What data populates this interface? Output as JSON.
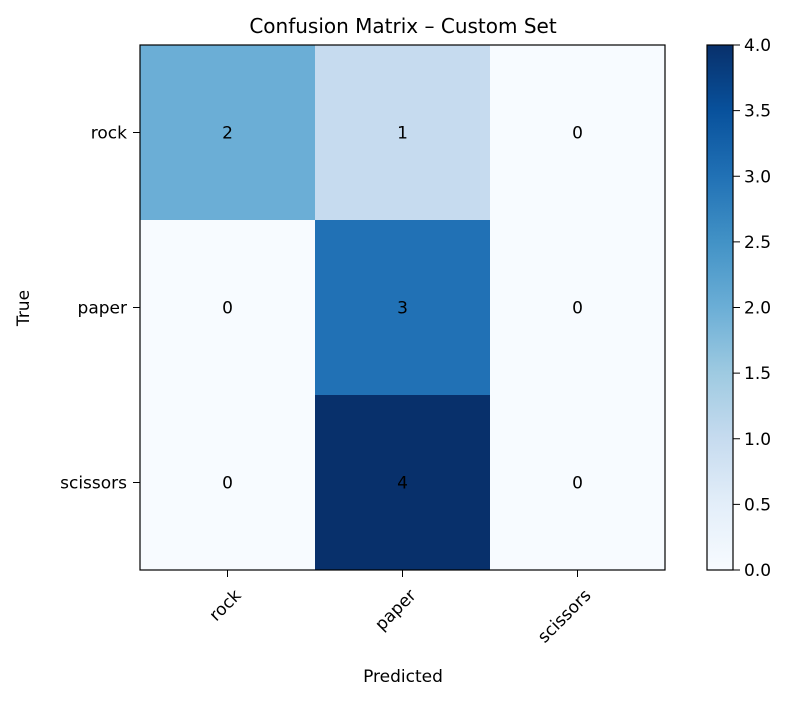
{
  "chart_data": {
    "type": "heatmap",
    "title": "Confusion Matrix – Custom Set",
    "xlabel": "Predicted",
    "ylabel": "True",
    "x_categories": [
      "rock",
      "paper",
      "scissors"
    ],
    "y_categories": [
      "rock",
      "paper",
      "scissors"
    ],
    "values": [
      [
        2,
        1,
        0
      ],
      [
        0,
        3,
        0
      ],
      [
        0,
        4,
        0
      ]
    ],
    "color_range": [
      0,
      4
    ],
    "colorbar_ticks": [
      "0.0",
      "0.5",
      "1.0",
      "1.5",
      "2.0",
      "2.5",
      "3.0",
      "3.5",
      "4.0"
    ],
    "colormap": "Blues",
    "grid": false,
    "legend": "colorbar-right"
  }
}
